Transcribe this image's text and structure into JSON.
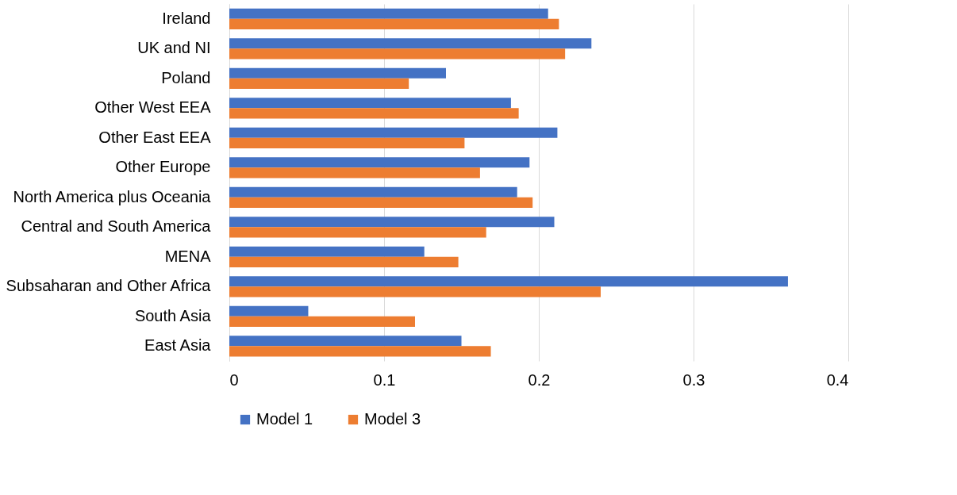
{
  "chart_data": {
    "type": "bar",
    "orientation": "horizontal",
    "categories": [
      "Ireland",
      "UK and NI",
      "Poland",
      "Other West EEA",
      "Other East EEA",
      "Other Europe",
      "North America plus Oceania",
      "Central and South America",
      "MENA",
      "Subsaharan and Other Africa",
      "South Asia",
      "East Asia"
    ],
    "series": [
      {
        "name": "Model 1",
        "color": "#4472c4",
        "values": [
          0.206,
          0.234,
          0.14,
          0.182,
          0.212,
          0.194,
          0.186,
          0.21,
          0.126,
          0.361,
          0.051,
          0.15
        ]
      },
      {
        "name": "Model 3",
        "color": "#ed7d31",
        "values": [
          0.213,
          0.217,
          0.116,
          0.187,
          0.152,
          0.162,
          0.196,
          0.166,
          0.148,
          0.24,
          0.12,
          0.169
        ]
      }
    ],
    "xlim": [
      0,
      0.4
    ],
    "xticks": [
      0,
      0.1,
      0.2,
      0.3,
      0.4
    ],
    "grid": "x",
    "legend": "bottom"
  }
}
